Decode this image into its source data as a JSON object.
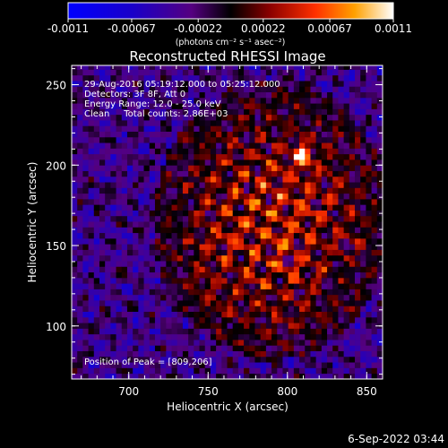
{
  "chart_data": {
    "type": "heatmap",
    "title": "Reconstructed RHESSI Image",
    "xlabel": "Heliocentric X (arcsec)",
    "ylabel": "Heliocentric Y (arcsec)",
    "xlim": [
      664,
      860
    ],
    "ylim": [
      67,
      262
    ],
    "x_ticks": [
      700,
      750,
      800,
      850
    ],
    "y_ticks": [
      100,
      150,
      200,
      250
    ],
    "colorbar": {
      "range": [
        -0.0011,
        0.0011
      ],
      "ticks": [
        -0.0011,
        -0.00067,
        -0.00022,
        0.00022,
        0.00067,
        0.0011
      ],
      "tick_labels": [
        "-0.0011",
        "-0.00067",
        "-0.00022",
        "0.00022",
        "0.00067",
        "0.0011"
      ],
      "units_label": "(photons cm⁻² s⁻¹ asec⁻²)"
    },
    "annotations": [
      "29-Aug-2016 05:19:12.000 to 05:25:12.000",
      "Detectors: 3F 8F, Att 0",
      "Energy Range: 12.0 - 25.0 keV",
      "Clean     Total counts: 2.86E+03"
    ],
    "peak_label": "Position of Peak = [809,206]",
    "peak_position": [
      809,
      206
    ],
    "grid": false
  },
  "footer": {
    "timestamp": "6-Sep-2022 03:44"
  }
}
